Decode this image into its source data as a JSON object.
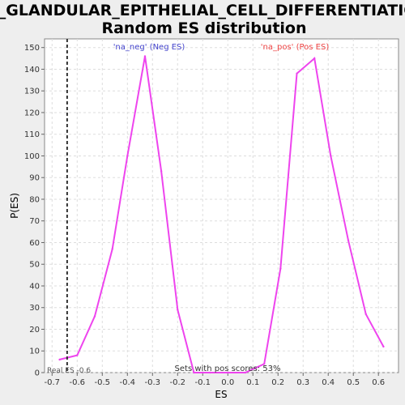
{
  "chart_data": {
    "type": "line",
    "title_line1": "GO_GLANDULAR_EPITHELIAL_CELL_DIFFERENTIATION:",
    "title_line2": "Random ES distribution",
    "xlabel": "ES",
    "ylabel": "P(ES)",
    "xlim": [
      -0.73,
      0.68
    ],
    "ylim": [
      0,
      154
    ],
    "xticks": [
      -0.7,
      -0.6,
      -0.5,
      -0.4,
      -0.3,
      -0.2,
      -0.1,
      0.0,
      0.1,
      0.2,
      0.3,
      0.4,
      0.5,
      0.6
    ],
    "xtick_labels": [
      "-0.7",
      "-0.6",
      "-0.5",
      "-0.4",
      "-0.3",
      "-0.2",
      "-0.1",
      "0.0",
      "0.1",
      "0.2",
      "0.3",
      "0.4",
      "0.5",
      "0.6"
    ],
    "yticks": [
      0,
      10,
      20,
      30,
      40,
      50,
      60,
      70,
      80,
      90,
      100,
      110,
      120,
      130,
      140,
      150
    ],
    "ytick_labels": [
      "0",
      "10",
      "20",
      "30",
      "40",
      "50",
      "60",
      "70",
      "80",
      "90",
      "100",
      "110",
      "120",
      "130",
      "140",
      "150"
    ],
    "grid": true,
    "series": [
      {
        "color": "#ee44ee",
        "x": [
          -0.67,
          -0.6,
          -0.53,
          -0.46,
          -0.4,
          -0.33,
          -0.265,
          -0.2,
          -0.135,
          -0.07,
          0.0,
          0.07,
          0.145,
          0.21,
          0.275,
          0.345,
          0.41,
          0.48,
          0.55,
          0.62
        ],
        "y": [
          6,
          8,
          26,
          57,
          100,
          146,
          93,
          29,
          0,
          0,
          0,
          0,
          4,
          48,
          138,
          145,
          100,
          61,
          27,
          12
        ]
      }
    ],
    "real_es": -0.64,
    "real_es_label": "Real ES -0.6",
    "neg_label": "'na_neg' (Neg ES)",
    "neg_label_color": "#4444cc",
    "pos_label": "'na_pos' (Pos ES)",
    "pos_label_color": "#ee4444",
    "footer_text": "Sets with pos scores: 53%"
  }
}
